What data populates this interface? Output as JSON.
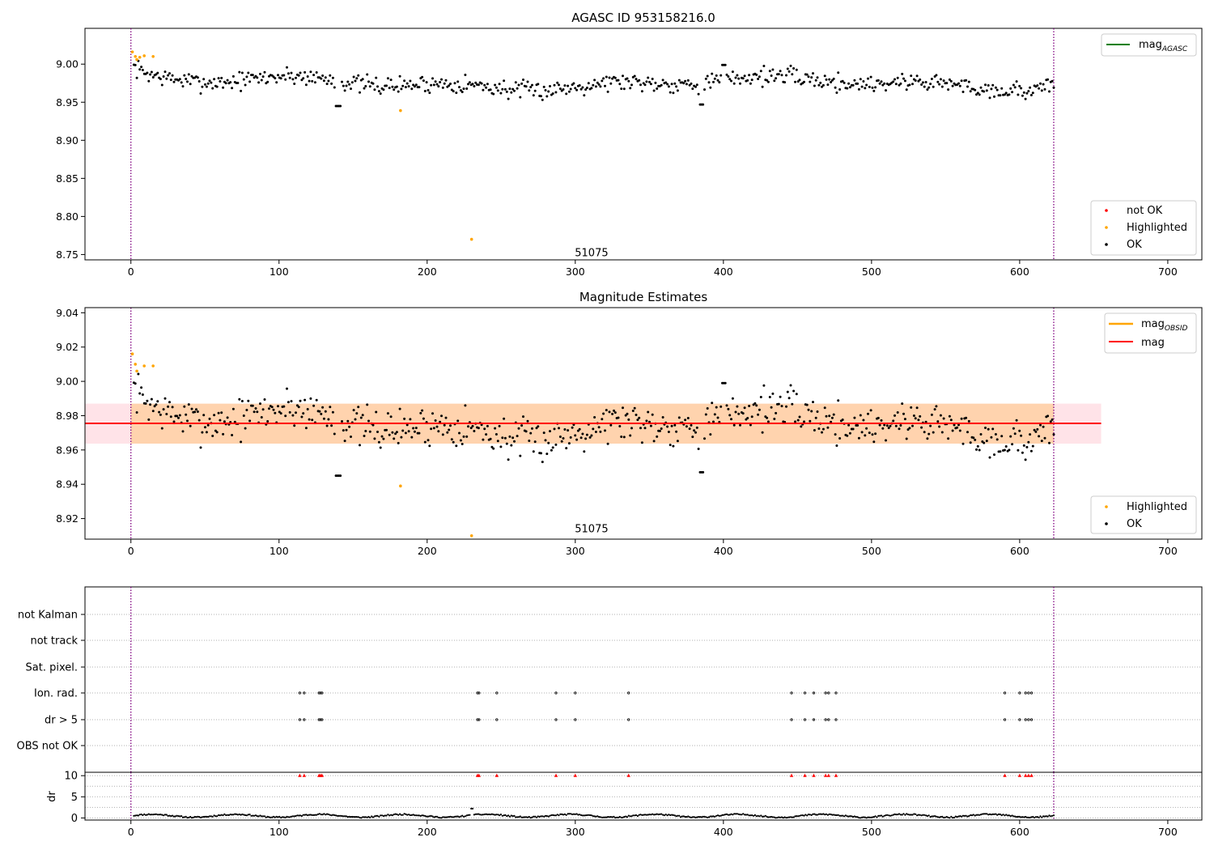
{
  "chart_data": [
    {
      "type": "scatter",
      "title": "AGASC ID 953158216.0",
      "xlim": [
        -31,
        723
      ],
      "ylim": [
        8.743,
        9.047
      ],
      "x_ticks": [
        0,
        100,
        200,
        300,
        400,
        500,
        600,
        700
      ],
      "y_ticks": [
        8.75,
        8.8,
        8.85,
        8.9,
        8.95,
        9.0
      ],
      "y_tick_labels": [
        "8.75",
        "8.80",
        "8.85",
        "8.90",
        "8.95",
        "9.00"
      ],
      "vlines": [
        0,
        623
      ],
      "vline_color": "#800080",
      "annotation": {
        "text": "51075",
        "x": 311,
        "y": 8.748
      },
      "legend_lines": [
        {
          "label": "mag",
          "sub": "AGASC",
          "color": "#008000"
        }
      ],
      "legend_points": [
        {
          "label": "not OK",
          "color": "#ff0000"
        },
        {
          "label": "Highlighted",
          "color": "#ffa500"
        },
        {
          "label": "OK",
          "color": "#000000"
        }
      ],
      "highlighted_points": [
        {
          "x": 1,
          "y": 9.016
        },
        {
          "x": 3,
          "y": 9.01
        },
        {
          "x": 4,
          "y": 9.006
        },
        {
          "x": 6,
          "y": 9.009
        },
        {
          "x": 9,
          "y": 9.011
        },
        {
          "x": 15,
          "y": 9.01
        },
        {
          "x": 182,
          "y": 8.939
        },
        {
          "x": 230,
          "y": 8.77
        }
      ],
      "ok_series": {
        "n": 620,
        "x_start": 2,
        "x_end": 623,
        "base": 8.975,
        "amp": 0.012,
        "noise": 0.009,
        "seed": 7
      }
    },
    {
      "type": "scatter",
      "title": "Magnitude Estimates",
      "xlim": [
        -31,
        723
      ],
      "ylim": [
        8.908,
        9.043
      ],
      "x_ticks": [
        0,
        100,
        200,
        300,
        400,
        500,
        600,
        700
      ],
      "y_ticks": [
        8.92,
        8.94,
        8.96,
        8.98,
        9.0,
        9.02,
        9.04
      ],
      "y_tick_labels": [
        "8.92",
        "8.94",
        "8.96",
        "8.98",
        "9.00",
        "9.02",
        "9.04"
      ],
      "vlines": [
        0,
        623
      ],
      "vline_color": "#800080",
      "annotation": {
        "text": "51075",
        "x": 311,
        "y": 8.912
      },
      "mag_line": {
        "y": 8.9755,
        "x_end": 655,
        "color": "#ff0000"
      },
      "band_outer": {
        "y_low": 8.9637,
        "y_high": 8.987,
        "color": "#ffc0cb"
      },
      "band_inner": {
        "y_low": 8.9637,
        "y_high": 8.987,
        "x_start": 0,
        "x_end": 623,
        "color": "#ffa500"
      },
      "legend_lines": [
        {
          "label": "mag",
          "sub": "OBSID",
          "color": "#ffa500"
        },
        {
          "label": "mag",
          "sub": "",
          "color": "#ff0000"
        }
      ],
      "legend_points": [
        {
          "label": "Highlighted",
          "color": "#ffa500"
        },
        {
          "label": "OK",
          "color": "#000000"
        }
      ],
      "highlighted_points": [
        {
          "x": 1,
          "y": 9.016
        },
        {
          "x": 3,
          "y": 9.01
        },
        {
          "x": 4,
          "y": 9.006
        },
        {
          "x": 9,
          "y": 9.009
        },
        {
          "x": 15,
          "y": 9.009
        },
        {
          "x": 182,
          "y": 8.939
        },
        {
          "x": 230,
          "y": 8.91
        }
      ],
      "ok_series": {
        "n": 620,
        "x_start": 2,
        "x_end": 623,
        "base": 8.975,
        "amp": 0.012,
        "noise": 0.009,
        "seed": 7
      }
    },
    {
      "type": "scatter",
      "xlim": [
        -31,
        723
      ],
      "x_ticks": [
        0,
        100,
        200,
        300,
        400,
        500,
        600,
        700
      ],
      "categories": [
        "not Kalman",
        "not track",
        "Sat. pixel.",
        "Ion. rad.",
        "dr > 5",
        "OBS not OK"
      ],
      "flag_positions": {
        "Ion. rad.": [
          114,
          117,
          127,
          128,
          129,
          234,
          235,
          247,
          287,
          300,
          336,
          446,
          455,
          461,
          469,
          471,
          476,
          590,
          600,
          604,
          606,
          608
        ],
        "dr > 5": [
          114,
          117,
          127,
          128,
          129,
          234,
          235,
          247,
          287,
          300,
          336,
          446,
          455,
          461,
          469,
          471,
          476,
          590,
          600,
          604,
          606,
          608
        ]
      },
      "dr_panel": {
        "ylabel": "dr",
        "ylim": [
          -0.5,
          10.8
        ],
        "y_ticks": [
          0,
          5,
          10
        ],
        "y_tick_labels": [
          "0",
          "5",
          "10"
        ],
        "marker_color": "#ff0000",
        "high_x": [
          114,
          117,
          127,
          128,
          129,
          234,
          235,
          247,
          287,
          300,
          336,
          446,
          455,
          461,
          469,
          471,
          476,
          590,
          600,
          604,
          606,
          608
        ],
        "spike": {
          "x": 230,
          "y": 2.2
        }
      }
    }
  ]
}
